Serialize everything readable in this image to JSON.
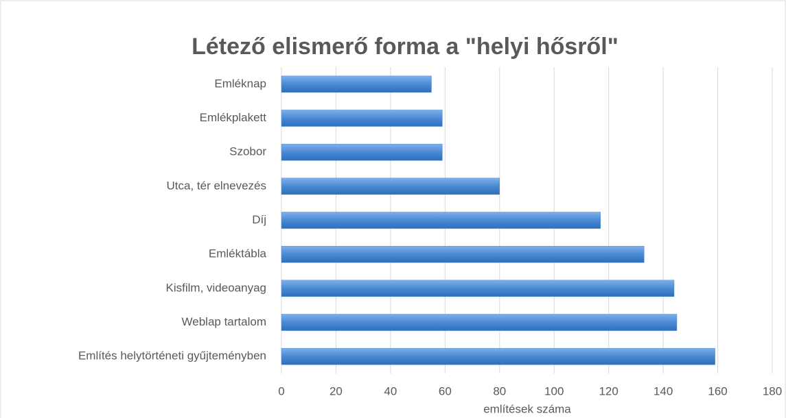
{
  "chart_data": {
    "type": "barh",
    "title": "Létező elismerő forma a \"helyi hősről\"",
    "xlabel": "említések száma",
    "categories": [
      "Emléknap",
      "Emlékplakett",
      "Szobor",
      "Utca, tér elnevezés",
      "Díj",
      "Emléktábla",
      "Kisfilm, videoanyag",
      "Weblap tartalom",
      "Említés helytörténeti gyűjteményben"
    ],
    "values": [
      55,
      59,
      59,
      80,
      117,
      133,
      144,
      145,
      159
    ],
    "color": "#4a8ad4",
    "xlim": [
      0,
      180
    ],
    "xticks": [
      0,
      20,
      40,
      60,
      80,
      100,
      120,
      140,
      160,
      180
    ],
    "grid": true
  }
}
